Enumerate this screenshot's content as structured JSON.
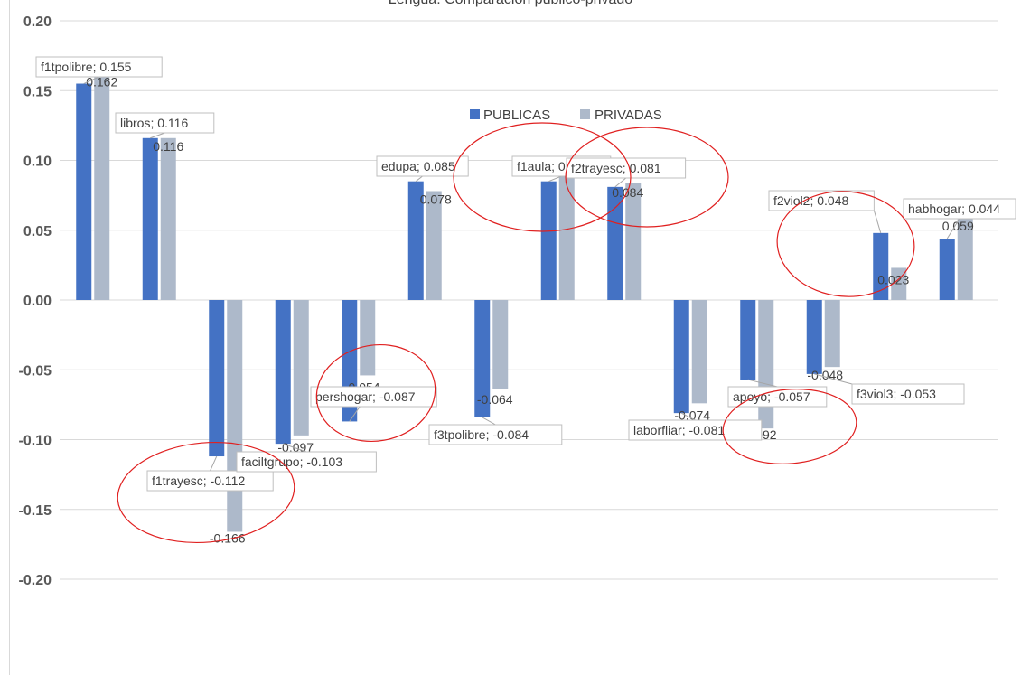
{
  "chart_data": {
    "type": "bar",
    "title": "Lengua: Comparación público-privado",
    "ylim": [
      -0.25,
      0.2
    ],
    "yticks": [
      0.2,
      0.15,
      0.1,
      0.05,
      0.0,
      -0.05,
      -0.1,
      -0.15,
      -0.2
    ],
    "ytick_labels": [
      "0.20",
      "0.15",
      "0.10",
      "0.05",
      "0.00",
      "-0.05",
      "-0.10",
      "-0.15",
      "-0.20"
    ],
    "grid": true,
    "legend_position": "top-center",
    "categories": [
      "f1tpolibre",
      "libros",
      "f1trayesc",
      "faciltgrupo",
      "pershogar",
      "edupa",
      "f3tpolibre",
      "f1aula",
      "f2trayesc",
      "laborfliar",
      "apoyo",
      "f3viol3",
      "f2viol2",
      "habhogar"
    ],
    "series": [
      {
        "name": "PUBLICAS",
        "color": "#4472c4",
        "values": [
          0.155,
          0.116,
          -0.112,
          -0.103,
          -0.087,
          0.085,
          -0.084,
          0.085,
          0.081,
          -0.081,
          -0.057,
          -0.053,
          0.048,
          0.044
        ]
      },
      {
        "name": "PRIVADAS",
        "color": "#adb9ca",
        "values": [
          0.162,
          0.116,
          -0.166,
          -0.097,
          -0.054,
          0.078,
          -0.064,
          0.101,
          0.084,
          -0.074,
          -0.092,
          -0.048,
          0.023,
          0.059
        ]
      }
    ],
    "value_labels": [
      "0.162",
      "0.116",
      "-0.166",
      "-0.097",
      "-0.054",
      "0.078",
      "-0.064",
      "0.101",
      "0.084",
      "-0.074",
      "-0.092",
      "-0.048",
      "0.023",
      "0.059"
    ],
    "callouts": [
      "f1tpolibre; 0.155",
      "libros; 0.116",
      "f1trayesc; -0.112",
      "faciltgrupo; -0.103",
      "pershogar; -0.087",
      "edupa; 0.085",
      "f3tpolibre; -0.084",
      "f1aula; 0.085",
      "f2trayesc; 0.081",
      "laborfliar; -0.081",
      "apoyo; -0.057",
      "f3viol3; -0.053",
      "f2viol2; 0.048",
      "habhogar; 0.044"
    ],
    "highlight_circles": 6,
    "highlight_color": "#e02020",
    "gridline_color": "#d9d9d9"
  }
}
